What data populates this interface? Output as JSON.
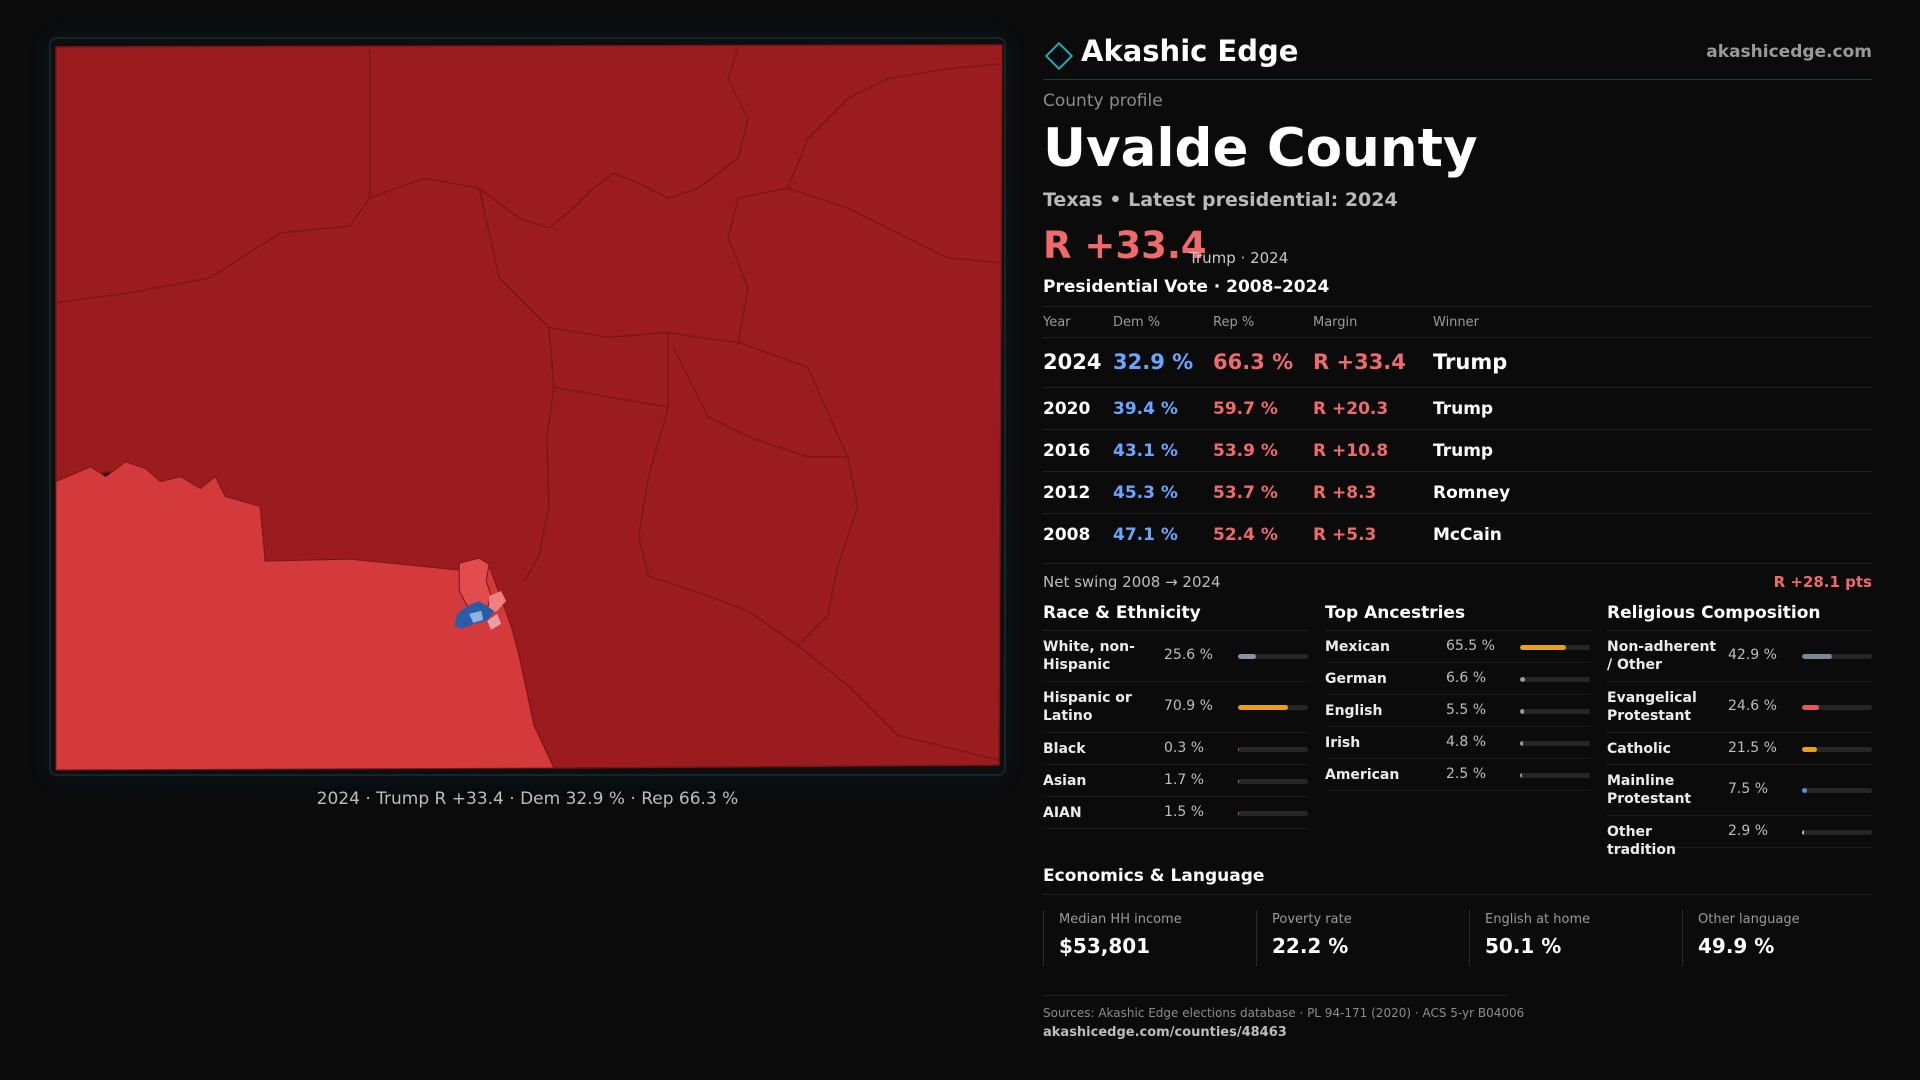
{
  "map": {
    "caption": "2024 · Trump R +33.4 · Dem 32.9 % · Rep 66.3 %",
    "colors": {
      "strong_rep": "#9b1c1f",
      "lean_rep": "#d43a3b",
      "light_rep": "#f08080",
      "dem": "#2a5ca8",
      "light_dem": "#8fb2e0",
      "border": "#7a1518"
    }
  },
  "header": {
    "brand": "Akashic Edge",
    "site": "akashicedge.com"
  },
  "profile": {
    "kicker": "County profile",
    "title": "Uvalde County",
    "subtitle": "Texas • Latest presidential: 2024",
    "margin": "R +33.4",
    "margin_note": "Trump · 2024"
  },
  "results": {
    "heading": "Presidential Vote · 2008–2024",
    "columns": {
      "year": "Year",
      "dem": "Dem %",
      "rep": "Rep %",
      "margin": "Margin",
      "winner": "Winner"
    },
    "rows": [
      {
        "year": "2024",
        "dem": "32.9 %",
        "rep": "66.3 %",
        "margin": "R +33.4",
        "winner": "Trump"
      },
      {
        "year": "2020",
        "dem": "39.4 %",
        "rep": "59.7 %",
        "margin": "R +20.3",
        "winner": "Trump"
      },
      {
        "year": "2016",
        "dem": "43.1 %",
        "rep": "53.9 %",
        "margin": "R +10.8",
        "winner": "Trump"
      },
      {
        "year": "2012",
        "dem": "45.3 %",
        "rep": "53.7 %",
        "margin": "R +8.3",
        "winner": "Romney"
      },
      {
        "year": "2008",
        "dem": "47.1 %",
        "rep": "52.4 %",
        "margin": "R +5.3",
        "winner": "McCain"
      }
    ],
    "swing_label": "Net swing 2008 → 2024",
    "swing_value": "R +28.1 pts"
  },
  "race": {
    "heading": "Race & Ethnicity",
    "rows": [
      {
        "label": "White, non-Hispanic",
        "value": "25.6 %",
        "share": 25.6,
        "color": "#8a94a6"
      },
      {
        "label": "Hispanic or Latino",
        "value": "70.9 %",
        "share": 70.9,
        "color": "#e3a21a"
      },
      {
        "label": "Black",
        "value": "0.3 %",
        "share": 0.3,
        "color": "#b35a9a"
      },
      {
        "label": "Asian",
        "value": "1.7 %",
        "share": 1.7,
        "color": "#2fb3a0"
      },
      {
        "label": "AIAN",
        "value": "1.5 %",
        "share": 1.5,
        "color": "#c0703a"
      }
    ]
  },
  "ancestry": {
    "heading": "Top Ancestries",
    "rows": [
      {
        "label": "Mexican",
        "value": "65.5 %",
        "share": 65.5,
        "color": "#e3a21a"
      },
      {
        "label": "German",
        "value": "6.6 %",
        "share": 6.6,
        "color": "#9a9a9a"
      },
      {
        "label": "English",
        "value": "5.5 %",
        "share": 5.5,
        "color": "#9a9a9a"
      },
      {
        "label": "Irish",
        "value": "4.8 %",
        "share": 4.8,
        "color": "#9a9a9a"
      },
      {
        "label": "American",
        "value": "2.5 %",
        "share": 2.5,
        "color": "#9a9a9a"
      }
    ]
  },
  "religion": {
    "heading": "Religious Composition",
    "rows": [
      {
        "label": "Non-adherent / Other",
        "value": "42.9 %",
        "share": 42.9,
        "color": "#7a8598"
      },
      {
        "label": "Evangelical Protestant",
        "value": "24.6 %",
        "share": 24.6,
        "color": "#e05a5a"
      },
      {
        "label": "Catholic",
        "value": "21.5 %",
        "share": 21.5,
        "color": "#e3a21a"
      },
      {
        "label": "Mainline Protestant",
        "value": "7.5 %",
        "share": 7.5,
        "color": "#5a8ee0"
      },
      {
        "label": "Other tradition",
        "value": "2.9 %",
        "share": 2.9,
        "color": "#bdbdbd"
      }
    ]
  },
  "economics": {
    "heading": "Economics & Language",
    "items": [
      {
        "label": "Median HH income",
        "value": "$53,801"
      },
      {
        "label": "Poverty rate",
        "value": "22.2 %"
      },
      {
        "label": "English at home",
        "value": "50.1 %"
      },
      {
        "label": "Other language",
        "value": "49.9 %"
      }
    ]
  },
  "footer": {
    "sources": "Sources: Akashic Edge elections database · PL 94-171 (2020) · ACS 5-yr B04006",
    "url": "akashicedge.com/counties/48463"
  }
}
